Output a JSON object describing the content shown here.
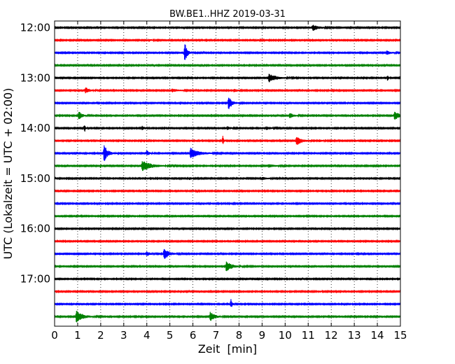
{
  "chart_data": {
    "type": "line",
    "title": "BW.BE1..HHZ 2019-03-31",
    "xlabel": "Zeit  [min]",
    "ylabel": "UTC (Lokalzeit = UTC + 02:00)",
    "xlim": [
      0,
      15
    ],
    "x_ticks": [
      "0",
      "1",
      "2",
      "3",
      "4",
      "5",
      "6",
      "7",
      "8",
      "9",
      "10",
      "11",
      "12",
      "13",
      "14",
      "15"
    ],
    "y_tick_labels": [
      "12:00",
      "13:00",
      "14:00",
      "15:00",
      "16:00",
      "17:00"
    ],
    "grid": true,
    "trace_colors": [
      "#000000",
      "#ff0000",
      "#0000ff",
      "#008000"
    ],
    "traces": [
      {
        "start": "12:00",
        "events": [
          {
            "x": 11.2,
            "amp": 0.35,
            "dur": 0.6
          }
        ]
      },
      {
        "start": "12:15",
        "events": [
          {
            "x": 4.1,
            "amp": 0.15,
            "dur": 0.3
          },
          {
            "x": 8.8,
            "amp": 0.1,
            "dur": 0.3
          }
        ]
      },
      {
        "start": "12:30",
        "events": [
          {
            "x": 5.65,
            "amp": 1.2,
            "dur": 0.25
          },
          {
            "x": 14.4,
            "amp": 0.25,
            "dur": 0.5
          }
        ]
      },
      {
        "start": "12:45",
        "events": []
      },
      {
        "start": "13:00",
        "events": [
          {
            "x": 9.3,
            "amp": 0.5,
            "dur": 0.8
          },
          {
            "x": 14.45,
            "amp": 0.35,
            "dur": 0.1
          }
        ]
      },
      {
        "start": "13:15",
        "events": [
          {
            "x": 1.35,
            "amp": 0.35,
            "dur": 0.4
          },
          {
            "x": 5.1,
            "amp": 0.2,
            "dur": 0.6
          },
          {
            "x": 7.8,
            "amp": 0.2,
            "dur": 0.3
          }
        ]
      },
      {
        "start": "13:30",
        "events": [
          {
            "x": 7.55,
            "amp": 0.8,
            "dur": 0.4
          }
        ]
      },
      {
        "start": "13:45",
        "events": [
          {
            "x": 1.05,
            "amp": 0.5,
            "dur": 0.4
          },
          {
            "x": 10.2,
            "amp": 0.3,
            "dur": 0.4
          },
          {
            "x": 14.75,
            "amp": 0.55,
            "dur": 0.5
          }
        ]
      },
      {
        "start": "14:00",
        "events": [
          {
            "x": 1.3,
            "amp": 0.5,
            "dur": 0.1
          },
          {
            "x": 3.8,
            "amp": 0.25,
            "dur": 0.3
          },
          {
            "x": 7.5,
            "amp": 0.2,
            "dur": 0.4
          },
          {
            "x": 9.2,
            "amp": 0.2,
            "dur": 0.4
          }
        ]
      },
      {
        "start": "14:15",
        "events": [
          {
            "x": 7.3,
            "amp": 0.55,
            "dur": 0.1
          },
          {
            "x": 10.5,
            "amp": 0.6,
            "dur": 0.5
          },
          {
            "x": 11.5,
            "amp": 0.1,
            "dur": 0.4
          }
        ]
      },
      {
        "start": "14:30",
        "events": [
          {
            "x": 2.15,
            "amp": 1.0,
            "dur": 0.4
          },
          {
            "x": 4.0,
            "amp": 0.3,
            "dur": 0.3
          },
          {
            "x": 5.9,
            "amp": 0.65,
            "dur": 0.9
          }
        ]
      },
      {
        "start": "14:45",
        "events": [
          {
            "x": 2.0,
            "amp": 0.25,
            "dur": 0.1
          },
          {
            "x": 3.8,
            "amp": 0.6,
            "dur": 1.0
          },
          {
            "x": 9.3,
            "amp": 0.2,
            "dur": 0.6
          }
        ]
      },
      {
        "start": "15:00",
        "events": [
          {
            "x": 5.85,
            "amp": 0.15,
            "dur": 0.3
          },
          {
            "x": 9.0,
            "amp": 0.15,
            "dur": 0.6
          }
        ]
      },
      {
        "start": "15:15",
        "events": [
          {
            "x": 6.0,
            "amp": 0.1,
            "dur": 0.3
          }
        ]
      },
      {
        "start": "15:30",
        "events": []
      },
      {
        "start": "15:45",
        "events": []
      },
      {
        "start": "16:00",
        "events": [
          {
            "x": 3.0,
            "amp": 0.15,
            "dur": 0.1
          }
        ]
      },
      {
        "start": "16:15",
        "events": []
      },
      {
        "start": "16:30",
        "events": [
          {
            "x": 4.0,
            "amp": 0.3,
            "dur": 0.3
          },
          {
            "x": 4.75,
            "amp": 0.75,
            "dur": 0.5
          }
        ]
      },
      {
        "start": "16:45",
        "events": [
          {
            "x": 7.45,
            "amp": 0.6,
            "dur": 0.6
          }
        ]
      },
      {
        "start": "17:00",
        "events": []
      },
      {
        "start": "17:15",
        "events": [
          {
            "x": 11.5,
            "amp": 0.1,
            "dur": 0.2
          }
        ]
      },
      {
        "start": "17:30",
        "events": [
          {
            "x": 7.65,
            "amp": 0.55,
            "dur": 0.15
          }
        ]
      },
      {
        "start": "17:45",
        "events": [
          {
            "x": 0.95,
            "amp": 0.7,
            "dur": 0.7
          },
          {
            "x": 6.75,
            "amp": 0.55,
            "dur": 0.5
          }
        ]
      }
    ]
  }
}
